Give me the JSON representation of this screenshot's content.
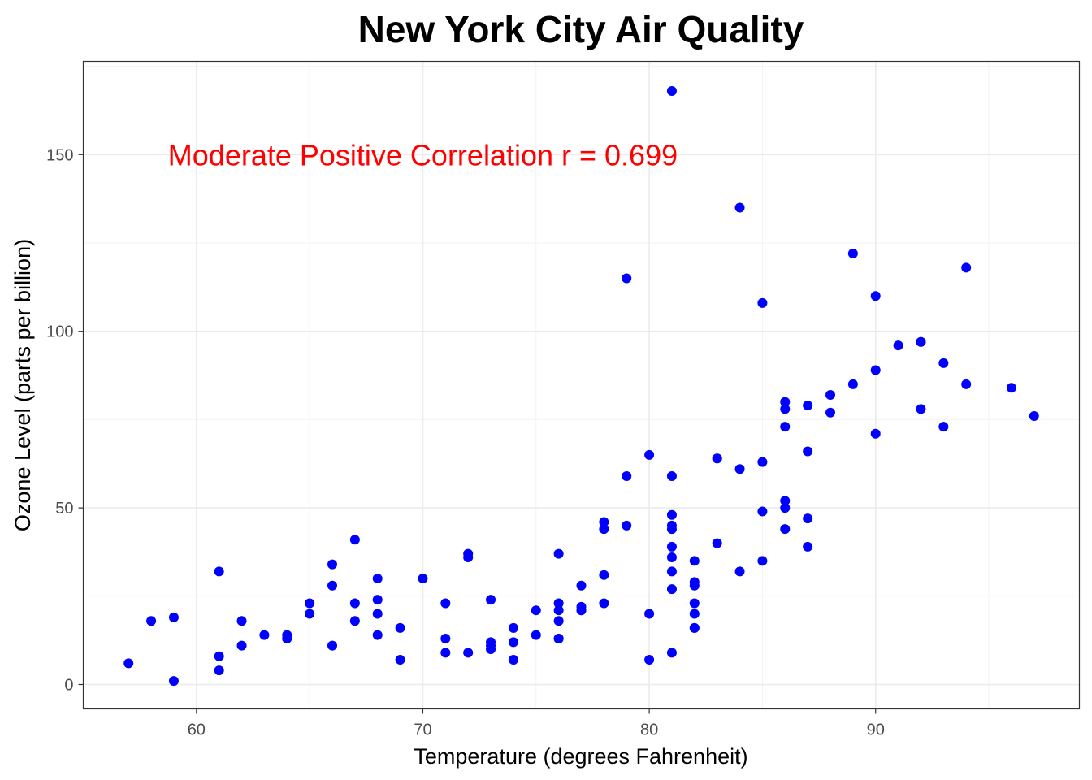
{
  "chart_data": {
    "type": "scatter",
    "title": "New York City Air Quality",
    "xlabel": "Temperature (degrees Fahrenheit)",
    "ylabel": "Ozone Level (parts per billion)",
    "xlim": [
      55,
      99
    ],
    "ylim": [
      -6.9,
      176.4
    ],
    "xticks": [
      60,
      70,
      80,
      90
    ],
    "yticks": [
      0,
      50,
      100,
      150
    ],
    "xtick_labels": [
      "60",
      "70",
      "80",
      "90"
    ],
    "ytick_labels": [
      "0",
      "50",
      "100",
      "150"
    ],
    "grid": true,
    "point_color": "#0000FF",
    "annotation": {
      "text": "Moderate Positive Correlation r = 0.699",
      "color": "#FF0000",
      "x": 70,
      "y": 150
    },
    "points": [
      [
        67,
        41
      ],
      [
        72,
        36
      ],
      [
        74,
        12
      ],
      [
        62,
        18
      ],
      [
        66,
        28
      ],
      [
        65,
        23
      ],
      [
        59,
        19
      ],
      [
        61,
        8
      ],
      [
        74,
        7
      ],
      [
        69,
        16
      ],
      [
        66,
        11
      ],
      [
        68,
        14
      ],
      [
        58,
        18
      ],
      [
        64,
        14
      ],
      [
        66,
        34
      ],
      [
        57,
        6
      ],
      [
        68,
        30
      ],
      [
        62,
        11
      ],
      [
        59,
        1
      ],
      [
        73,
        11
      ],
      [
        61,
        4
      ],
      [
        61,
        32
      ],
      [
        67,
        23
      ],
      [
        81,
        45
      ],
      [
        79,
        115
      ],
      [
        76,
        37
      ],
      [
        82,
        29
      ],
      [
        90,
        71
      ],
      [
        87,
        39
      ],
      [
        82,
        23
      ],
      [
        77,
        21
      ],
      [
        72,
        37
      ],
      [
        65,
        20
      ],
      [
        73,
        12
      ],
      [
        76,
        13
      ],
      [
        84,
        135
      ],
      [
        85,
        49
      ],
      [
        81,
        32
      ],
      [
        83,
        64
      ],
      [
        83,
        40
      ],
      [
        88,
        77
      ],
      [
        92,
        97
      ],
      [
        92,
        97
      ],
      [
        89,
        85
      ],
      [
        73,
        10
      ],
      [
        81,
        27
      ],
      [
        80,
        7
      ],
      [
        81,
        48
      ],
      [
        82,
        35
      ],
      [
        84,
        61
      ],
      [
        87,
        79
      ],
      [
        85,
        63
      ],
      [
        74,
        16
      ],
      [
        86,
        80
      ],
      [
        85,
        108
      ],
      [
        82,
        20
      ],
      [
        86,
        52
      ],
      [
        88,
        82
      ],
      [
        86,
        50
      ],
      [
        83,
        64
      ],
      [
        81,
        59
      ],
      [
        81,
        39
      ],
      [
        81,
        9
      ],
      [
        82,
        16
      ],
      [
        86,
        78
      ],
      [
        85,
        35
      ],
      [
        87,
        66
      ],
      [
        89,
        122
      ],
      [
        90,
        89
      ],
      [
        90,
        110
      ],
      [
        86,
        44
      ],
      [
        82,
        28
      ],
      [
        80,
        65
      ],
      [
        77,
        22
      ],
      [
        79,
        59
      ],
      [
        76,
        23
      ],
      [
        78,
        31
      ],
      [
        78,
        44
      ],
      [
        77,
        21
      ],
      [
        72,
        9
      ],
      [
        79,
        45
      ],
      [
        81,
        168
      ],
      [
        86,
        73
      ],
      [
        97,
        76
      ],
      [
        94,
        118
      ],
      [
        96,
        84
      ],
      [
        94,
        85
      ],
      [
        91,
        96
      ],
      [
        92,
        78
      ],
      [
        93,
        73
      ],
      [
        93,
        91
      ],
      [
        87,
        47
      ],
      [
        84,
        32
      ],
      [
        80,
        20
      ],
      [
        78,
        23
      ],
      [
        75,
        21
      ],
      [
        73,
        24
      ],
      [
        81,
        44
      ],
      [
        76,
        21
      ],
      [
        77,
        28
      ],
      [
        71,
        9
      ],
      [
        71,
        13
      ],
      [
        78,
        46
      ],
      [
        67,
        18
      ],
      [
        76,
        13
      ],
      [
        68,
        24
      ],
      [
        82,
        16
      ],
      [
        64,
        13
      ],
      [
        71,
        23
      ],
      [
        81,
        36
      ],
      [
        69,
        7
      ],
      [
        63,
        14
      ],
      [
        70,
        30
      ],
      [
        75,
        14
      ],
      [
        76,
        18
      ],
      [
        68,
        20
      ]
    ]
  }
}
